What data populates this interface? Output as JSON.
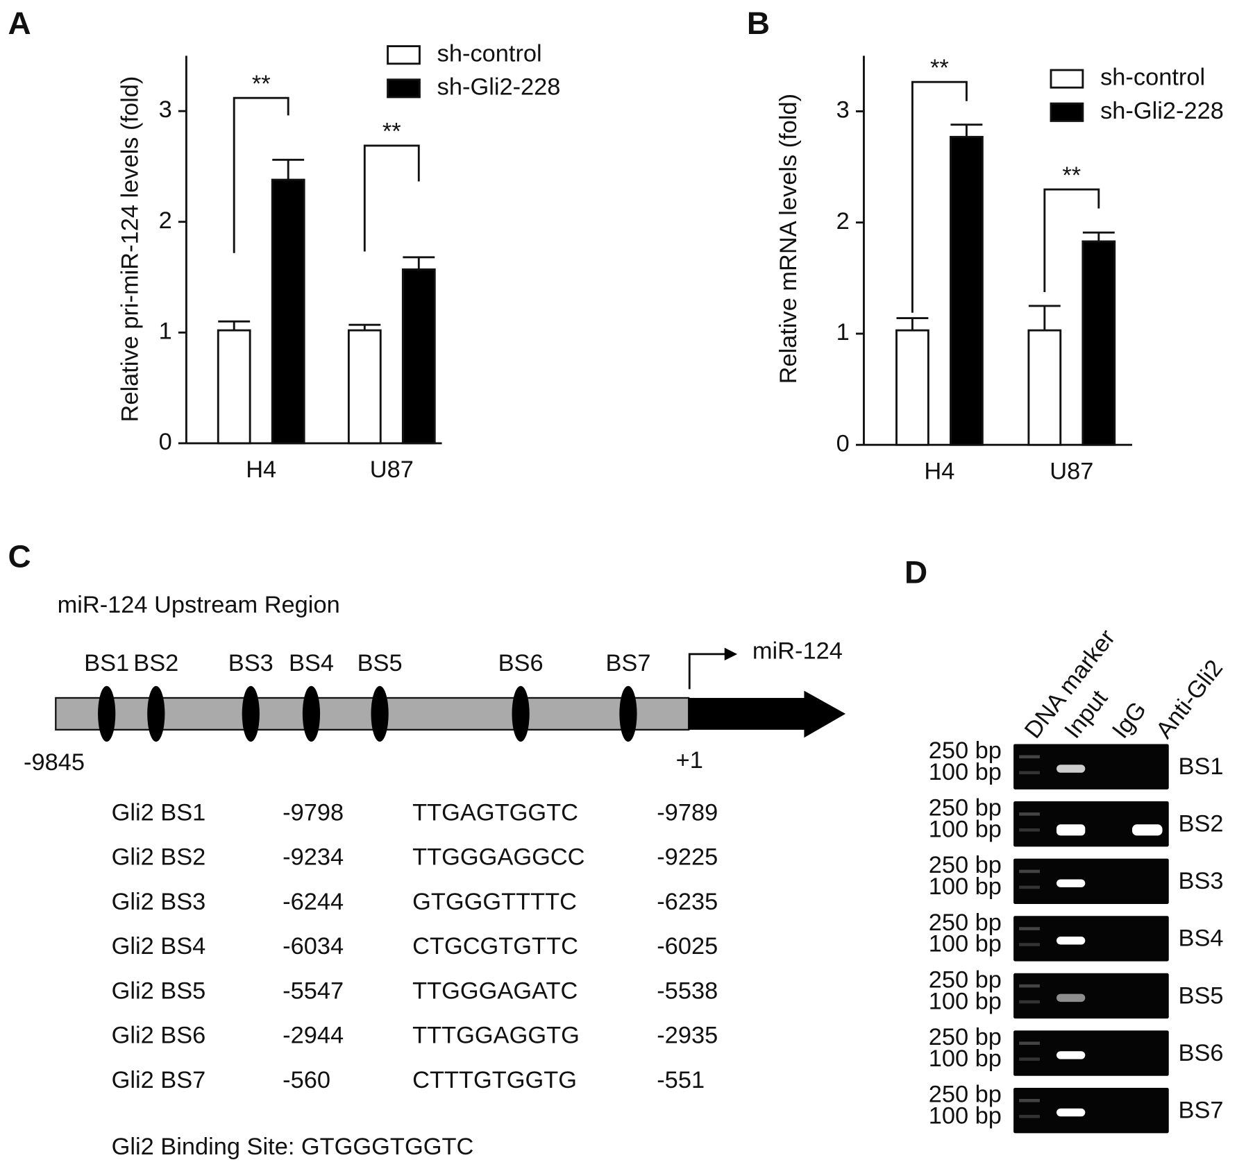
{
  "panel_labels": [
    "A",
    "B",
    "C",
    "D"
  ],
  "chart_data": [
    {
      "type": "bar",
      "y_label": "Relative pri-miR-124 levels (fold)",
      "categories": [
        "H4",
        "U87"
      ],
      "series": [
        {
          "name": "sh-control",
          "color": "#ffffff",
          "values": [
            1.02,
            1.02
          ],
          "errors": [
            0.08,
            0.05
          ]
        },
        {
          "name": "sh-Gli2-228",
          "color": "#000000",
          "values": [
            2.38,
            1.57
          ],
          "errors": [
            0.18,
            0.11
          ]
        }
      ],
      "ylim": [
        0,
        3.5
      ],
      "yticks": [
        0,
        1,
        2,
        3
      ],
      "annotations": [
        "**",
        "**"
      ],
      "legend": "upper right"
    },
    {
      "type": "bar",
      "y_label": "Relative mRNA levels (fold)",
      "categories": [
        "H4",
        "U87"
      ],
      "series": [
        {
          "name": "sh-control",
          "color": "#ffffff",
          "values": [
            1.03,
            1.03
          ],
          "errors": [
            0.11,
            0.22
          ]
        },
        {
          "name": "sh-Gli2-228",
          "color": "#000000",
          "values": [
            2.77,
            1.83
          ],
          "errors": [
            0.11,
            0.08
          ]
        }
      ],
      "ylim": [
        0,
        3.5
      ],
      "yticks": [
        0,
        1,
        2,
        3
      ],
      "annotations": [
        "**",
        "**"
      ],
      "legend": "upper right"
    }
  ],
  "panel_c": {
    "title": "miR-124 Upstream Region",
    "sites": [
      "BS1",
      "BS2",
      "BS3",
      "BS4",
      "BS5",
      "BS6",
      "BS7"
    ],
    "start": "-9845",
    "end": "+1",
    "gene": "miR-124",
    "rows": [
      [
        "Gli2 BS1",
        "-9798",
        "TTGAGTGGTC",
        "-9789"
      ],
      [
        "Gli2 BS2",
        "-9234",
        "TTGGGAGGCC",
        "-9225"
      ],
      [
        "Gli2 BS3",
        "-6244",
        "GTGGGTTTTC",
        "-6235"
      ],
      [
        "Gli2 BS4",
        "-6034",
        "CTGCGTGTTC",
        "-6025"
      ],
      [
        "Gli2 BS5",
        "-5547",
        "TTGGGAGATC",
        "-5538"
      ],
      [
        "Gli2 BS6",
        "-2944",
        "TTTGGAGGTG",
        "-2935"
      ],
      [
        "Gli2 BS7",
        "-560",
        "CTTTGTGGTG",
        "-551"
      ]
    ],
    "footer": "Gli2 Binding Site: GTGGGTGGTC"
  },
  "panel_d": {
    "lanes": [
      "DNA marker",
      "Input",
      "IgG",
      "Anti-Gli2"
    ],
    "marker_labels": [
      "250 bp",
      "100 bp"
    ],
    "rows": [
      "BS1",
      "BS2",
      "BS3",
      "BS4",
      "BS5",
      "BS6",
      "BS7"
    ]
  }
}
